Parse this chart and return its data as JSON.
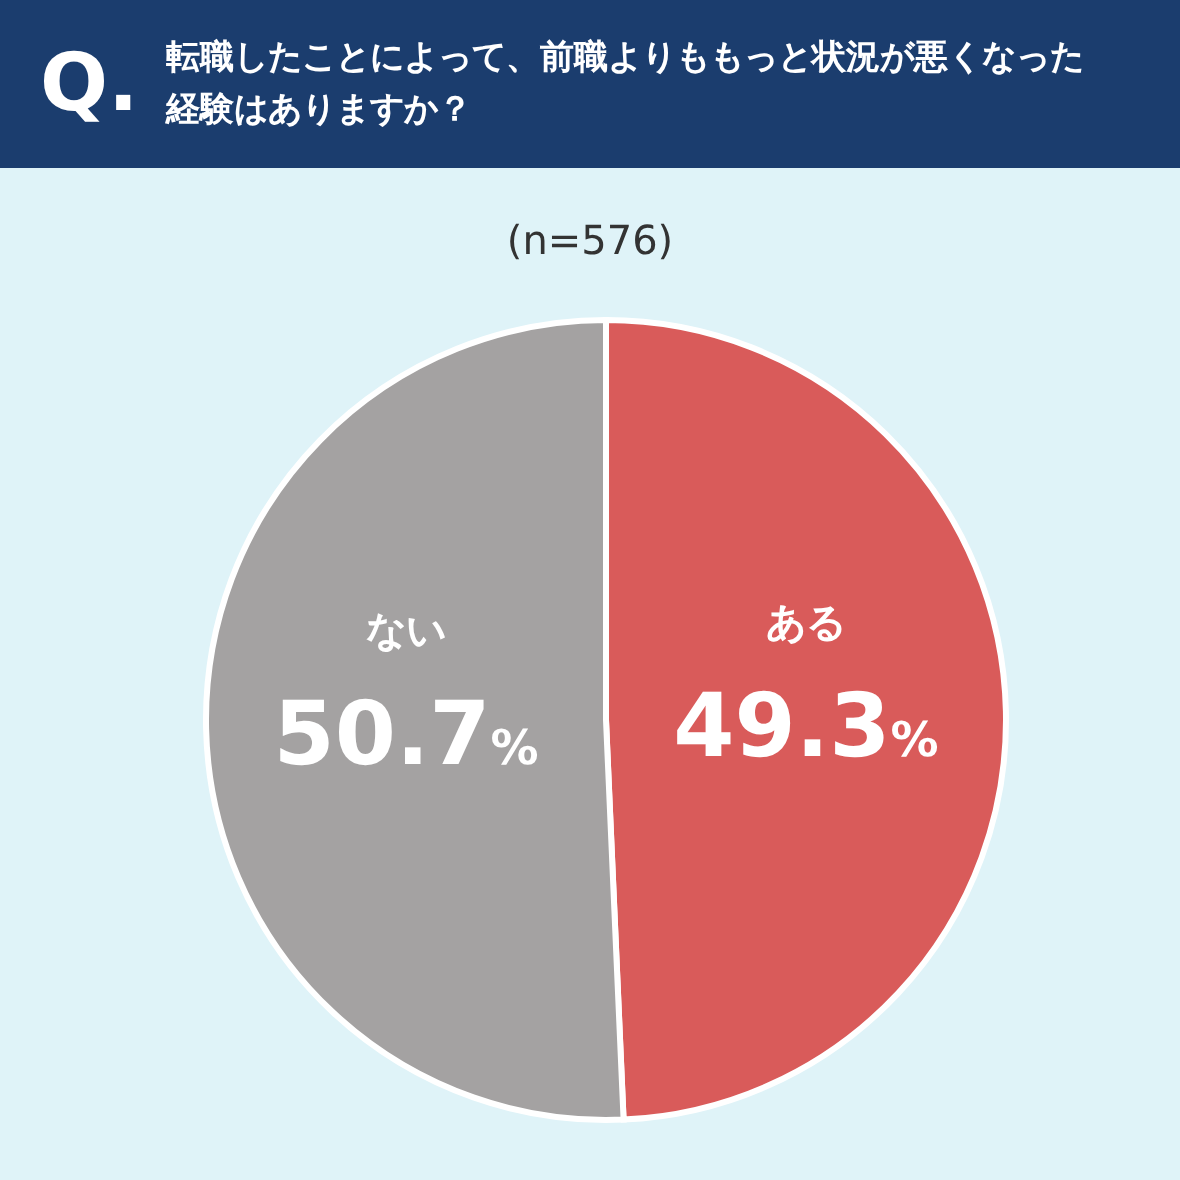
{
  "chart_data": {
    "type": "pie",
    "title": "転職したことによって、前職よりももっと状況が悪くなった経験はありますか？",
    "subtitle": "(n=576)",
    "annotations": [
      "Q."
    ],
    "categories": [
      "ある",
      "ない"
    ],
    "values": [
      49.3,
      50.7
    ],
    "colors": [
      "#d95b5a",
      "#a4a2a2"
    ],
    "value_labels": [
      "49.3%",
      "50.7%"
    ],
    "legend": false
  }
}
